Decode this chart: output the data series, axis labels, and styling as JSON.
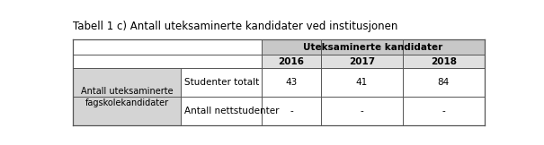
{
  "title": "Tabell 1 c) Antall uteksaminerte kandidater ved institusjonen",
  "header_main": "Uteksaminerte kandidater",
  "col_headers": [
    "2016",
    "2017",
    "2018"
  ],
  "row_group_label": "Antall uteksaminerte\nfagskolekandidater",
  "row_labels": [
    "Studenter totalt",
    "Antall nettstudenter"
  ],
  "data": [
    [
      "43",
      "41",
      "84"
    ],
    [
      "-",
      "-",
      "-"
    ]
  ],
  "bg_color": "#ffffff",
  "header_bg": "#c8c8c8",
  "subheader_bg": "#e0e0e0",
  "left_col_bg": "#d4d4d4",
  "cell_bg": "#ffffff",
  "border_color": "#555555",
  "title_fontsize": 8.5,
  "cell_fontsize": 7.5
}
